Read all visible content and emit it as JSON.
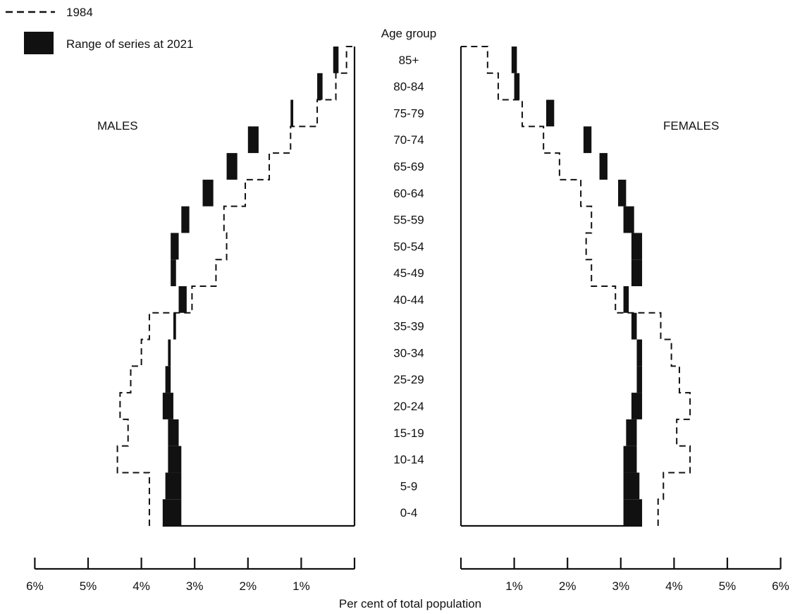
{
  "chart_data": {
    "type": "population-pyramid",
    "title": "",
    "xlabel": "Per cent of total population",
    "age_axis_title": "Age group",
    "units": "%",
    "xlim": [
      0,
      6
    ],
    "x_ticks": [
      {
        "value": 6,
        "label": "6%"
      },
      {
        "value": 5,
        "label": "5%"
      },
      {
        "value": 4,
        "label": "4%"
      },
      {
        "value": 3,
        "label": "3%"
      },
      {
        "value": 2,
        "label": "2%"
      },
      {
        "value": 1,
        "label": "1%"
      },
      {
        "value": 0,
        "label": ""
      }
    ],
    "age_groups": [
      "0-4",
      "5-9",
      "10-14",
      "15-19",
      "20-24",
      "25-29",
      "30-34",
      "35-39",
      "40-44",
      "45-49",
      "50-54",
      "55-59",
      "60-64",
      "65-69",
      "70-74",
      "75-79",
      "80-84",
      "85+"
    ],
    "legend": {
      "line_label": "1984",
      "band_label": "Range of series at 2021"
    },
    "males": {
      "label": "MALES",
      "series_1984": [
        3.85,
        3.85,
        4.45,
        4.25,
        4.4,
        4.2,
        4.0,
        3.85,
        3.05,
        2.6,
        2.4,
        2.45,
        2.05,
        1.6,
        1.2,
        0.7,
        0.35,
        0.15
      ],
      "range_2021_low": [
        3.25,
        3.25,
        3.25,
        3.3,
        3.4,
        3.45,
        3.45,
        3.35,
        3.15,
        3.35,
        3.3,
        3.1,
        2.65,
        2.2,
        1.8,
        1.15,
        0.6,
        0.3
      ],
      "range_2021_high": [
        3.6,
        3.55,
        3.5,
        3.5,
        3.6,
        3.55,
        3.5,
        3.4,
        3.3,
        3.45,
        3.45,
        3.25,
        2.85,
        2.4,
        2.0,
        1.2,
        0.7,
        0.4
      ]
    },
    "females": {
      "label": "FEMALES",
      "series_1984": [
        3.7,
        3.8,
        4.3,
        4.05,
        4.3,
        4.1,
        3.95,
        3.75,
        2.9,
        2.45,
        2.35,
        2.45,
        2.25,
        1.85,
        1.55,
        1.15,
        0.7,
        0.5
      ],
      "range_2021_low": [
        3.05,
        3.05,
        3.05,
        3.1,
        3.2,
        3.3,
        3.3,
        3.2,
        3.05,
        3.2,
        3.2,
        3.05,
        2.95,
        2.6,
        2.3,
        1.6,
        1.0,
        0.95
      ],
      "range_2021_high": [
        3.4,
        3.35,
        3.3,
        3.3,
        3.4,
        3.4,
        3.4,
        3.3,
        3.15,
        3.4,
        3.4,
        3.25,
        3.1,
        2.75,
        2.45,
        1.75,
        1.1,
        1.05
      ]
    },
    "colors": {
      "line": "#111111",
      "band": "#111111",
      "background": "#ffffff"
    }
  }
}
